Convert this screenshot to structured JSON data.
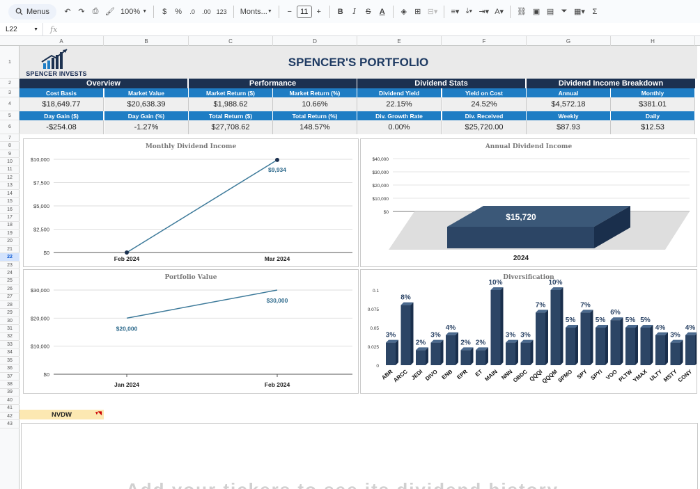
{
  "toolbar": {
    "menus_label": "Menus",
    "zoom": "100%",
    "currency": "$",
    "percent": "%",
    "dec_decrease": ".0",
    "dec_increase": ".00",
    "number_format": "123",
    "font": "Monts...",
    "font_size": "11",
    "minus": "−",
    "plus": "+"
  },
  "formula_bar": {
    "cell_ref": "L22",
    "fx": "fx"
  },
  "columns": [
    "A",
    "B",
    "C",
    "D",
    "E",
    "F",
    "G",
    "H"
  ],
  "rows": [
    "1",
    "2",
    "3",
    "4",
    "5",
    "6",
    "7",
    "8",
    "9",
    "10",
    "11",
    "12",
    "13",
    "14",
    "15",
    "16",
    "17",
    "18",
    "19",
    "20",
    "21",
    "22",
    "23",
    "24",
    "25",
    "26",
    "27",
    "28",
    "29",
    "30",
    "31",
    "32",
    "33",
    "34",
    "35",
    "36",
    "37",
    "38",
    "39",
    "40",
    "41",
    "42",
    "43"
  ],
  "selected_row": "22",
  "logo_text": "SPENCER INVESTS",
  "title": "SPENCER'S PORTFOLIO",
  "sections": [
    "Overview",
    "Performance",
    "Dividend Stats",
    "Dividend Income Breakdown"
  ],
  "row3_headers": [
    "Cost Basis",
    "Market Value",
    "Market Return ($)",
    "Market Return (%)",
    "Dividend Yield",
    "Yield on Cost",
    "Annual",
    "Monthly"
  ],
  "row4_values": [
    "$18,649.77",
    "$20,638.39",
    "$1,988.62",
    "10.66%",
    "22.15%",
    "24.52%",
    "$4,572.18",
    "$381.01"
  ],
  "row5_headers": [
    "Day Gain ($)",
    "Day Gain (%)",
    "Total Return ($)",
    "Total Return (%)",
    "Div. Growth Rate",
    "Div. Received",
    "Weekly",
    "Daily"
  ],
  "row6_values": [
    "-$254.08",
    "-1.27%",
    "$27,708.62",
    "148.57%",
    "0.00%",
    "$25,720.00",
    "$87.93",
    "$12.53"
  ],
  "colors": {
    "navy": "#1c3150",
    "blue": "#1f7dc4",
    "line": "#3d7a9a",
    "bar": "#2c4565"
  },
  "charts": {
    "monthly": {
      "title": "Monthly Dividend Income",
      "y_ticks": [
        "$10,000",
        "$7,500",
        "$5,000",
        "$2,500",
        "$0"
      ],
      "x_labels": [
        "Feb 2024",
        "Mar 2024"
      ],
      "point_label": "$9,934"
    },
    "annual": {
      "title": "Annual Dividend Income",
      "y_ticks": [
        "$40,000",
        "$30,000",
        "$20,000",
        "$10,000",
        "$0"
      ],
      "bar_label": "$15,720",
      "x_label": "2024"
    },
    "portfolio": {
      "title": "Portfolio Value",
      "y_ticks": [
        "$30,000",
        "$20,000",
        "$10,000",
        "$0"
      ],
      "x_labels": [
        "Jan 2024",
        "Feb 2024"
      ],
      "labels": [
        "$20,000",
        "$30,000"
      ]
    },
    "diversification": {
      "title": "Diversification",
      "y_ticks": [
        "0.1",
        "0.075",
        "0.05",
        "0.025",
        "0"
      ]
    }
  },
  "chart_data": [
    {
      "type": "line",
      "title": "Monthly Dividend Income",
      "x": [
        "Feb 2024",
        "Mar 2024"
      ],
      "values": [
        0,
        9934
      ],
      "ylim": [
        0,
        10000
      ]
    },
    {
      "type": "bar",
      "title": "Annual Dividend Income",
      "categories": [
        "2024"
      ],
      "values": [
        15720
      ],
      "ylim": [
        0,
        40000
      ]
    },
    {
      "type": "line",
      "title": "Portfolio Value",
      "x": [
        "Jan 2024",
        "Feb 2024"
      ],
      "values": [
        20000,
        30000
      ],
      "ylim": [
        0,
        30000
      ]
    },
    {
      "type": "bar",
      "title": "Diversification",
      "categories": [
        "ABR",
        "ARCC",
        "JEDI",
        "DIVO",
        "ENB",
        "EPR",
        "ET",
        "MAIN",
        "NNN",
        "OBDC",
        "QQQI",
        "QQQM",
        "SPMO",
        "SPY",
        "SPYI",
        "VOO",
        "PLTW",
        "YMAX",
        "ULTY",
        "MSTY",
        "CONY"
      ],
      "values": [
        0.03,
        0.08,
        0.02,
        0.03,
        0.04,
        0.02,
        0.02,
        0.1,
        0.03,
        0.03,
        0.07,
        0.1,
        0.05,
        0.07,
        0.05,
        0.06,
        0.05,
        0.05,
        0.04,
        0.03,
        0.04
      ],
      "labels": [
        "3%",
        "8%",
        "2%",
        "3%",
        "4%",
        "2%",
        "2%",
        "10%",
        "3%",
        "3%",
        "7%",
        "10%",
        "5%",
        "7%",
        "5%",
        "6%",
        "5%",
        "5%",
        "4%",
        "3%",
        "4%"
      ],
      "ylim": [
        0,
        0.1
      ]
    }
  ],
  "ticker_cell": "NVDW",
  "bottom_text": "Add your tickers to see its dividend history"
}
